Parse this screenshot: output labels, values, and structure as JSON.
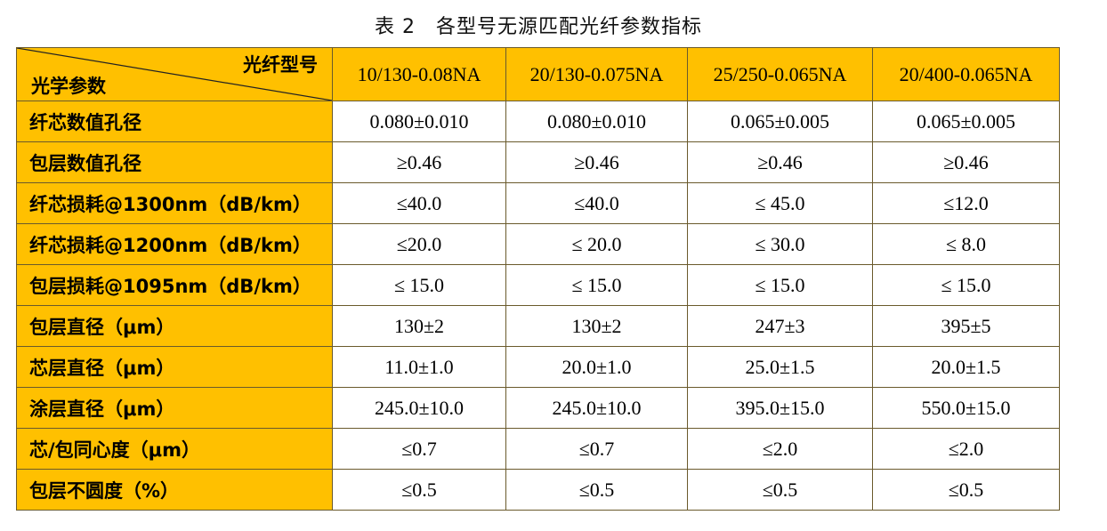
{
  "title": "表 2　各型号无源匹配光纤参数指标",
  "header": {
    "corner_top": "光纤型号",
    "corner_bottom": "光学参数",
    "models": [
      "10/130-0.08NA",
      "20/130-0.075NA",
      "25/250-0.065NA",
      "20/400-0.065NA"
    ]
  },
  "rows": [
    {
      "label": "纤芯数值孔径",
      "values": [
        "0.080±0.010",
        "0.080±0.010",
        "0.065±0.005",
        "0.065±0.005"
      ]
    },
    {
      "label": "包层数值孔径",
      "values": [
        "≥0.46",
        "≥0.46",
        "≥0.46",
        "≥0.46"
      ]
    },
    {
      "label": "纤芯损耗@1300nm（dB/km）",
      "values": [
        "≤40.0",
        "≤40.0",
        "≤ 45.0",
        "≤12.0"
      ]
    },
    {
      "label": "纤芯损耗@1200nm（dB/km）",
      "values": [
        "≤20.0",
        "≤ 20.0",
        "≤ 30.0",
        "≤ 8.0"
      ]
    },
    {
      "label": "包层损耗@1095nm（dB/km）",
      "values": [
        "≤ 15.0",
        "≤ 15.0",
        "≤ 15.0",
        "≤ 15.0"
      ]
    },
    {
      "label": "包层直径（μm）",
      "values": [
        "130±2",
        "130±2",
        "247±3",
        "395±5"
      ]
    },
    {
      "label": "芯层直径（μm）",
      "values": [
        "11.0±1.0",
        "20.0±1.0",
        "25.0±1.5",
        "20.0±1.5"
      ]
    },
    {
      "label": "涂层直径（μm）",
      "values": [
        "245.0±10.0",
        "245.0±10.0",
        "395.0±15.0",
        "550.0±15.0"
      ]
    },
    {
      "label": "芯/包同心度（μm）",
      "values": [
        "≤0.7",
        "≤0.7",
        "≤2.0",
        "≤2.0"
      ]
    },
    {
      "label": "包层不圆度（%）",
      "values": [
        "≤0.5",
        "≤0.5",
        "≤0.5",
        "≤0.5"
      ]
    }
  ],
  "colors": {
    "header_fill": "#FFC000",
    "border": "#6a5a2c"
  }
}
